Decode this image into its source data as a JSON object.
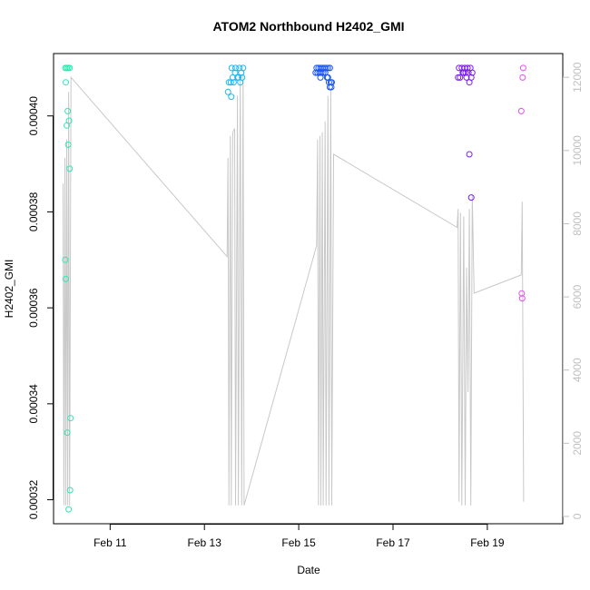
{
  "chart_data": {
    "type": "scatter",
    "title": "ATOM2 Northbound H2402_GMI",
    "xlabel": "Date",
    "ylabel": "H2402_GMI",
    "x_ticks": [
      "Feb 11",
      "Feb 13",
      "Feb 15",
      "Feb 17",
      "Feb 19"
    ],
    "x_tick_values": [
      11,
      13,
      15,
      17,
      19
    ],
    "xlim": [
      9.8,
      20.6
    ],
    "y_left": {
      "ticks": [
        "0.00032",
        "0.00034",
        "0.00036",
        "0.00038",
        "0.00040"
      ],
      "tick_values": [
        0.00032,
        0.00034,
        0.00036,
        0.00038,
        0.0004
      ],
      "ylim": [
        0.000315,
        0.000413
      ]
    },
    "y_right": {
      "ticks": [
        "0",
        "2000",
        "4000",
        "6000",
        "8000",
        "10000",
        "12000"
      ],
      "tick_values": [
        0,
        2000,
        4000,
        6000,
        8000,
        10000,
        12000
      ],
      "ylim": [
        -200,
        12650
      ],
      "color": "#c0c0c0"
    },
    "scatter_series": [
      {
        "color": "#2fe8b0",
        "points": [
          [
            10.05,
            0.00041
          ],
          [
            10.08,
            0.00041
          ],
          [
            10.11,
            0.00041
          ],
          [
            10.14,
            0.00041
          ],
          [
            10.06,
            0.000407
          ],
          [
            10.1,
            0.000401
          ],
          [
            10.08,
            0.000398
          ],
          [
            10.13,
            0.000399
          ],
          [
            10.11,
            0.000394
          ],
          [
            10.14,
            0.000389
          ],
          [
            10.05,
            0.00037
          ],
          [
            10.06,
            0.000366
          ],
          [
            10.09,
            0.000334
          ],
          [
            10.16,
            0.000337
          ],
          [
            10.15,
            0.000322
          ],
          [
            10.12,
            0.000318
          ]
        ]
      },
      {
        "color": "#1ab8f0",
        "points": [
          [
            13.52,
            0.000407
          ],
          [
            13.56,
            0.000407
          ],
          [
            13.6,
            0.000408
          ],
          [
            13.65,
            0.000409
          ],
          [
            13.7,
            0.000408
          ],
          [
            13.58,
            0.00041
          ],
          [
            13.66,
            0.00041
          ],
          [
            13.74,
            0.00041
          ],
          [
            13.82,
            0.00041
          ],
          [
            13.78,
            0.000409
          ],
          [
            13.72,
            0.000408
          ],
          [
            13.5,
            0.000405
          ],
          [
            13.57,
            0.000404
          ],
          [
            13.62,
            0.000407
          ],
          [
            13.76,
            0.000407
          ],
          [
            13.8,
            0.000408
          ]
        ]
      },
      {
        "color": "#1a55f0",
        "points": [
          [
            15.38,
            0.00041
          ],
          [
            15.42,
            0.00041
          ],
          [
            15.46,
            0.00041
          ],
          [
            15.5,
            0.00041
          ],
          [
            15.54,
            0.00041
          ],
          [
            15.58,
            0.00041
          ],
          [
            15.62,
            0.00041
          ],
          [
            15.66,
            0.00041
          ],
          [
            15.4,
            0.000409
          ],
          [
            15.44,
            0.000409
          ],
          [
            15.48,
            0.000409
          ],
          [
            15.52,
            0.000409
          ],
          [
            15.56,
            0.000409
          ],
          [
            15.6,
            0.000408
          ],
          [
            15.64,
            0.000407
          ],
          [
            15.68,
            0.000407
          ],
          [
            15.36,
            0.000409
          ],
          [
            15.46,
            0.000408
          ],
          [
            15.62,
            0.000408
          ],
          [
            15.66,
            0.000406
          ],
          [
            15.69,
            0.000406
          ],
          [
            15.7,
            0.000407
          ]
        ]
      },
      {
        "color": "#7a1ef0",
        "points": [
          [
            18.4,
            0.00041
          ],
          [
            18.46,
            0.00041
          ],
          [
            18.52,
            0.00041
          ],
          [
            18.58,
            0.00041
          ],
          [
            18.64,
            0.00041
          ],
          [
            18.38,
            0.000408
          ],
          [
            18.42,
            0.000408
          ],
          [
            18.48,
            0.000409
          ],
          [
            18.54,
            0.000409
          ],
          [
            18.6,
            0.000409
          ],
          [
            18.66,
            0.000408
          ],
          [
            18.5,
            0.000409
          ],
          [
            18.56,
            0.000408
          ],
          [
            18.62,
            0.000407
          ],
          [
            18.68,
            0.000409
          ],
          [
            18.62,
            0.000392
          ],
          [
            18.66,
            0.000383
          ]
        ]
      },
      {
        "color": "#e54ef0",
        "points": [
          [
            19.76,
            0.00041
          ],
          [
            19.75,
            0.000408
          ],
          [
            19.72,
            0.000401
          ],
          [
            19.74,
            0.000362
          ],
          [
            19.73,
            0.000363
          ]
        ]
      }
    ],
    "line_series": {
      "color": "#c8c8c8",
      "axis": "right",
      "points": [
        [
          10.0,
          9100
        ],
        [
          10.02,
          300
        ],
        [
          10.04,
          9800
        ],
        [
          10.06,
          300
        ],
        [
          10.08,
          10300
        ],
        [
          10.1,
          300
        ],
        [
          10.12,
          11600
        ],
        [
          10.14,
          300
        ],
        [
          10.17,
          12000
        ],
        [
          13.48,
          7100
        ],
        [
          13.5,
          9800
        ],
        [
          13.52,
          300
        ],
        [
          13.55,
          10400
        ],
        [
          13.57,
          300
        ],
        [
          13.6,
          10500
        ],
        [
          13.64,
          10600
        ],
        [
          13.66,
          300
        ],
        [
          13.7,
          11500
        ],
        [
          13.72,
          300
        ],
        [
          13.76,
          12100
        ],
        [
          13.79,
          300
        ],
        [
          13.82,
          12100
        ],
        [
          13.84,
          300
        ],
        [
          15.38,
          7400
        ],
        [
          15.4,
          10300
        ],
        [
          15.42,
          300
        ],
        [
          15.45,
          10400
        ],
        [
          15.47,
          300
        ],
        [
          15.5,
          10500
        ],
        [
          15.52,
          300
        ],
        [
          15.56,
          10800
        ],
        [
          15.58,
          300
        ],
        [
          15.62,
          11500
        ],
        [
          15.64,
          300
        ],
        [
          15.68,
          11700
        ],
        [
          15.7,
          300
        ],
        [
          15.74,
          9900
        ],
        [
          18.36,
          7900
        ],
        [
          18.38,
          8400
        ],
        [
          18.4,
          400
        ],
        [
          18.43,
          8300
        ],
        [
          18.46,
          300
        ],
        [
          18.5,
          8200
        ],
        [
          18.53,
          300
        ],
        [
          18.56,
          6800
        ],
        [
          18.59,
          3400
        ],
        [
          18.62,
          8400
        ],
        [
          18.65,
          300
        ],
        [
          18.68,
          8800
        ],
        [
          18.72,
          6100
        ],
        [
          19.72,
          6600
        ],
        [
          19.74,
          8600
        ],
        [
          19.77,
          400
        ]
      ]
    },
    "grid": false,
    "legend": "none"
  }
}
